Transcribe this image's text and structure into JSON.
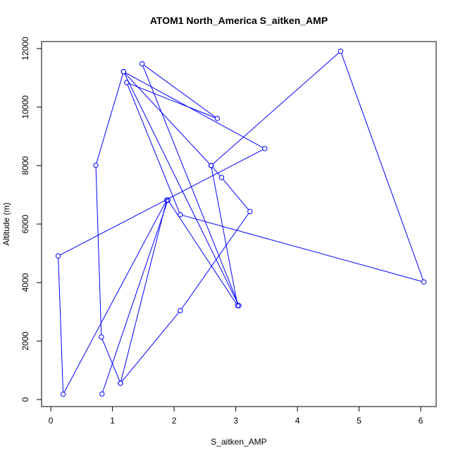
{
  "chart_data": {
    "type": "line",
    "title": "ATOM1 North_America S_aitken_AMP",
    "xlabel": "S_aitken_AMP",
    "ylabel": "Altitude (m)",
    "xlim": [
      -0.15,
      6.25
    ],
    "ylim": [
      -240,
      12240
    ],
    "xticks": [
      0,
      1,
      2,
      3,
      4,
      5,
      6
    ],
    "yticks": [
      0,
      2000,
      4000,
      6000,
      8000,
      10000,
      12000
    ],
    "grid": false,
    "series_color": "#0000ff",
    "series": [
      {
        "x": [
          1.13,
          2.1,
          3.23,
          2.77,
          2.6,
          4.7,
          6.05,
          2.1,
          1.23,
          2.7,
          1.48,
          3.05,
          1.18,
          0.73,
          0.82,
          1.13,
          1.88,
          0.2,
          0.12,
          3.47,
          1.18,
          2.6,
          3.03,
          1.9,
          0.83
        ],
        "y": [
          560,
          3040,
          6430,
          7590,
          8000,
          11910,
          4020,
          6320,
          10840,
          9610,
          11480,
          3210,
          11210,
          8010,
          2140,
          560,
          6820,
          180,
          4910,
          8580,
          11210,
          8000,
          3210,
          6820,
          190
        ]
      }
    ]
  }
}
